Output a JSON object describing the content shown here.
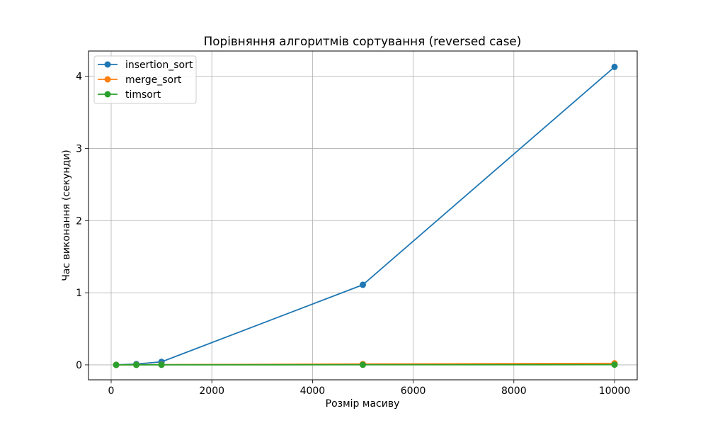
{
  "chart_data": {
    "type": "line",
    "title": "Порівняння алгоритмів сортування (reversed case)",
    "xlabel": "Розмір масиву",
    "ylabel": "Час виконання (секунди)",
    "xlim": [
      -450,
      10450
    ],
    "ylim": [
      -0.207,
      4.35
    ],
    "x": [
      100,
      500,
      1000,
      5000,
      10000
    ],
    "x_ticks": [
      0,
      2000,
      4000,
      6000,
      8000,
      10000
    ],
    "y_ticks": [
      0,
      1,
      2,
      3,
      4
    ],
    "grid": true,
    "legend_position": "upper-left",
    "series": [
      {
        "name": "insertion_sort",
        "color": "#1f77b4",
        "values": [
          0.0005,
          0.011,
          0.042,
          1.11,
          4.13
        ]
      },
      {
        "name": "merge_sort",
        "color": "#ff7f0e",
        "values": [
          0.0003,
          0.0015,
          0.003,
          0.012,
          0.021
        ]
      },
      {
        "name": "timsort",
        "color": "#2ca02c",
        "values": [
          0.0001,
          0.0003,
          0.0006,
          0.0015,
          0.003
        ]
      }
    ]
  }
}
